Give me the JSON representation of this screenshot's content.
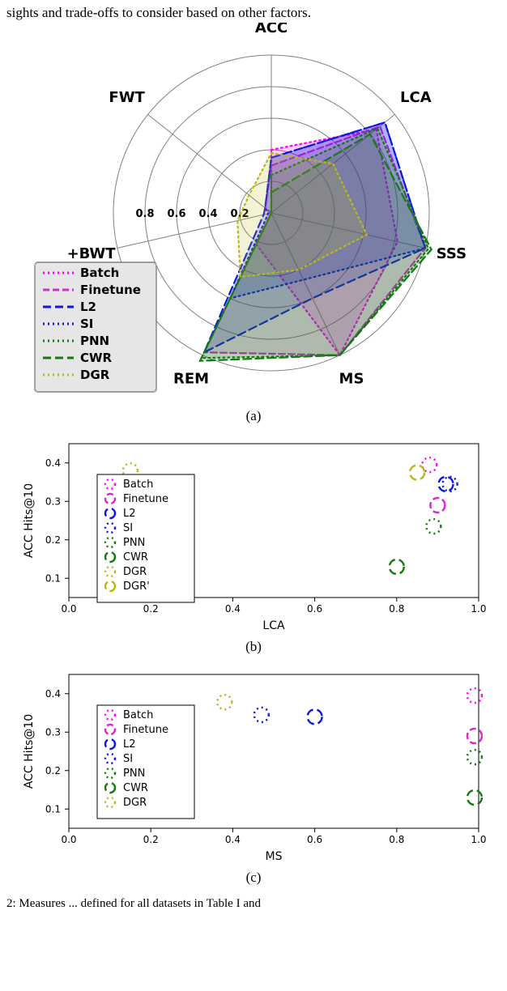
{
  "truncated_header": "sights and trade-offs to consider based on other factors.",
  "footer_text": "    2:  Measures  ...  defined  for  all  datasets  in  Table  I  and",
  "series": {
    "Batch": {
      "color": "#ff00ff",
      "dash": "2,4",
      "label": "Batch"
    },
    "Finetune": {
      "color": "#d62ccf",
      "dash": "8,4",
      "label": "Finetune"
    },
    "L2": {
      "color": "#1018e0",
      "dash": "10,5",
      "label": "L2"
    },
    "SI": {
      "color": "#1018e0",
      "dash": "2,4",
      "label": "SI"
    },
    "PNN": {
      "color": "#147a14",
      "dash": "2,4",
      "label": "PNN"
    },
    "CWR": {
      "color": "#147a14",
      "dash": "10,5",
      "label": "CWR"
    },
    "DGR": {
      "color": "#b8b818",
      "dash": "2,4",
      "label": "DGR"
    },
    "DGRp": {
      "color": "#b8b818",
      "dash": "10,5",
      "label": "DGR'"
    }
  },
  "radar": {
    "type": "radar",
    "axes": [
      "ACC",
      "LCA",
      "SSS",
      "MS",
      "REM",
      "+BWT",
      "FWT"
    ],
    "tick_values": [
      0.2,
      0.4,
      0.6,
      0.8
    ],
    "tick_labels": [
      "0.2",
      "0.4",
      "0.6",
      "0.8"
    ],
    "background_color": "#ffffff",
    "grid_color": "#808080",
    "grid_width": 1,
    "fill_opacity": 0.18,
    "stroke_width": 2.2,
    "label_fontsize": 18,
    "axis_angle_offset": 90,
    "data": {
      "Batch": [
        0.4,
        0.85,
        0.82,
        1.0,
        0.22,
        0.0,
        0.0
      ],
      "Finetune": [
        0.3,
        0.88,
        1.0,
        1.0,
        0.98,
        0.0,
        0.05
      ],
      "L2": [
        0.35,
        0.92,
        1.0,
        0.6,
        0.98,
        0.05,
        0.05
      ],
      "SI": [
        0.35,
        0.92,
        1.0,
        0.47,
        0.6,
        0.02,
        0.05
      ],
      "PNN": [
        0.24,
        0.86,
        1.02,
        1.0,
        1.02,
        0.0,
        0.0
      ],
      "CWR": [
        0.13,
        0.8,
        1.04,
        1.0,
        1.04,
        0.0,
        0.0
      ],
      "DGR": [
        0.38,
        0.5,
        0.62,
        0.4,
        0.45,
        0.22,
        0.18
      ]
    },
    "legend_order": [
      "Batch",
      "Finetune",
      "L2",
      "SI",
      "PNN",
      "CWR",
      "DGR"
    ]
  },
  "panel_b": {
    "type": "scatter",
    "xlabel": "LCA",
    "ylabel": "ACC Hits@10",
    "xlim": [
      0.0,
      1.0
    ],
    "ylim": [
      0.05,
      0.45
    ],
    "xtick_step": 0.2,
    "ytick_step": 0.1,
    "label_fontsize": 13,
    "tick_fontsize": 12,
    "marker_size": 9,
    "marker_stroke": 2.5,
    "background_color": "#ffffff",
    "points": [
      {
        "series": "Batch",
        "x": 0.88,
        "y": 0.395
      },
      {
        "series": "Finetune",
        "x": 0.9,
        "y": 0.29
      },
      {
        "series": "L2",
        "x": 0.92,
        "y": 0.345
      },
      {
        "series": "SI",
        "x": 0.93,
        "y": 0.345
      },
      {
        "series": "PNN",
        "x": 0.89,
        "y": 0.235
      },
      {
        "series": "CWR",
        "x": 0.8,
        "y": 0.13
      },
      {
        "series": "DGR",
        "x": 0.15,
        "y": 0.38
      },
      {
        "series": "DGRp",
        "x": 0.85,
        "y": 0.375
      }
    ],
    "legend_order": [
      "Batch",
      "Finetune",
      "L2",
      "SI",
      "PNN",
      "CWR",
      "DGR",
      "DGRp"
    ]
  },
  "panel_c": {
    "type": "scatter",
    "xlabel": "MS",
    "ylabel": "ACC Hits@10",
    "xlim": [
      0.0,
      1.0
    ],
    "ylim": [
      0.05,
      0.45
    ],
    "xtick_step": 0.2,
    "ytick_step": 0.1,
    "label_fontsize": 13,
    "tick_fontsize": 12,
    "marker_size": 9,
    "marker_stroke": 2.5,
    "background_color": "#ffffff",
    "points": [
      {
        "series": "Batch",
        "x": 0.99,
        "y": 0.395
      },
      {
        "series": "Finetune",
        "x": 0.99,
        "y": 0.29
      },
      {
        "series": "L2",
        "x": 0.6,
        "y": 0.34
      },
      {
        "series": "SI",
        "x": 0.47,
        "y": 0.345
      },
      {
        "series": "PNN",
        "x": 0.99,
        "y": 0.235
      },
      {
        "series": "CWR",
        "x": 0.99,
        "y": 0.13
      },
      {
        "series": "DGR",
        "x": 0.38,
        "y": 0.378
      }
    ],
    "legend_order": [
      "Batch",
      "Finetune",
      "L2",
      "SI",
      "PNN",
      "CWR",
      "DGR"
    ]
  },
  "sublabels": {
    "a": "(a)",
    "b": "(b)",
    "c": "(c)"
  }
}
